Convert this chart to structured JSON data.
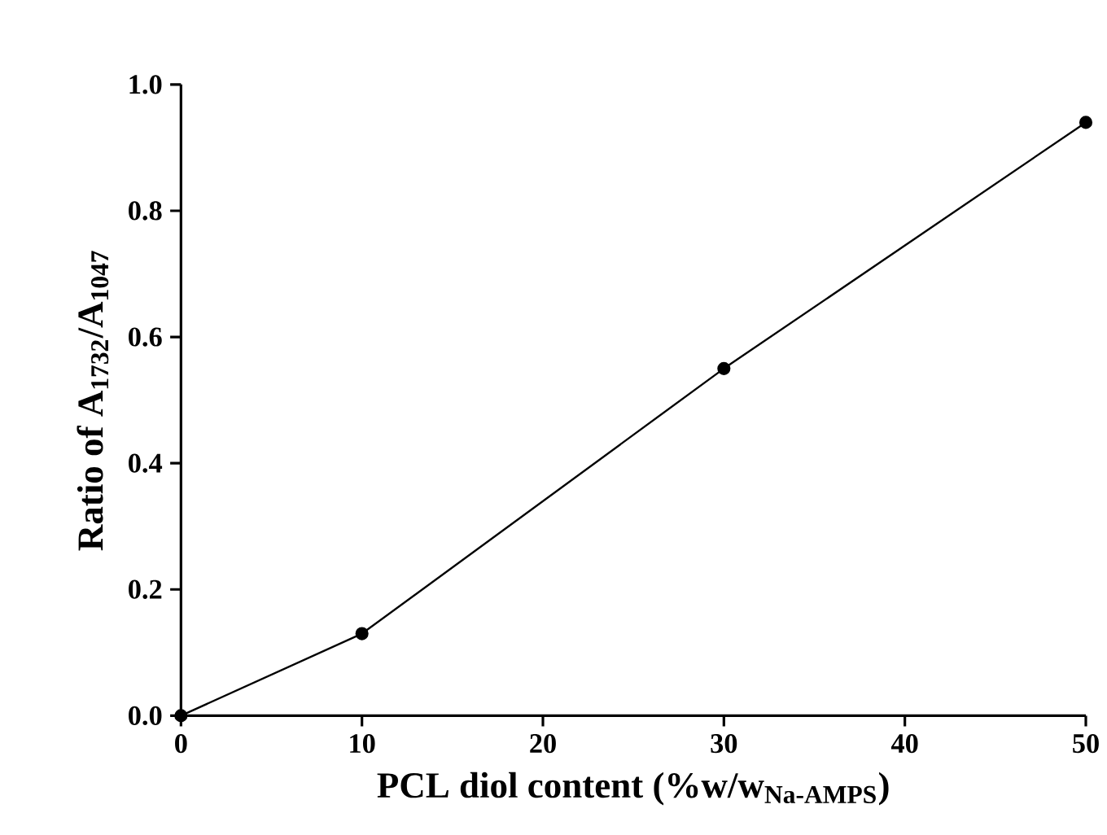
{
  "chart_data": {
    "type": "line",
    "xlabel": "PCL diol content (%w/w$_{Na-AMPS}$)",
    "ylabel": "Ratio of A$_{1732}$/A$_{1047}$",
    "x": [
      0,
      10,
      30,
      50
    ],
    "values": [
      0,
      0.13,
      0.55,
      0.94
    ],
    "color": "#000000",
    "xlim": [
      0,
      50
    ],
    "xticks": [
      0,
      10,
      20,
      30,
      40,
      50
    ],
    "ylim": [
      0,
      1.0
    ],
    "yticks": [
      {
        "value": 0,
        "label": "0.0"
      },
      {
        "value": 0.2,
        "label": "0.2"
      },
      {
        "value": 0.4,
        "label": "0.4"
      },
      {
        "value": 0.6,
        "label": "0.6"
      },
      {
        "value": 0.8,
        "label": "0.8"
      },
      {
        "value": 1.0,
        "label": "1.0"
      }
    ],
    "grid": false,
    "marker": "circle",
    "line_style": "solid"
  }
}
